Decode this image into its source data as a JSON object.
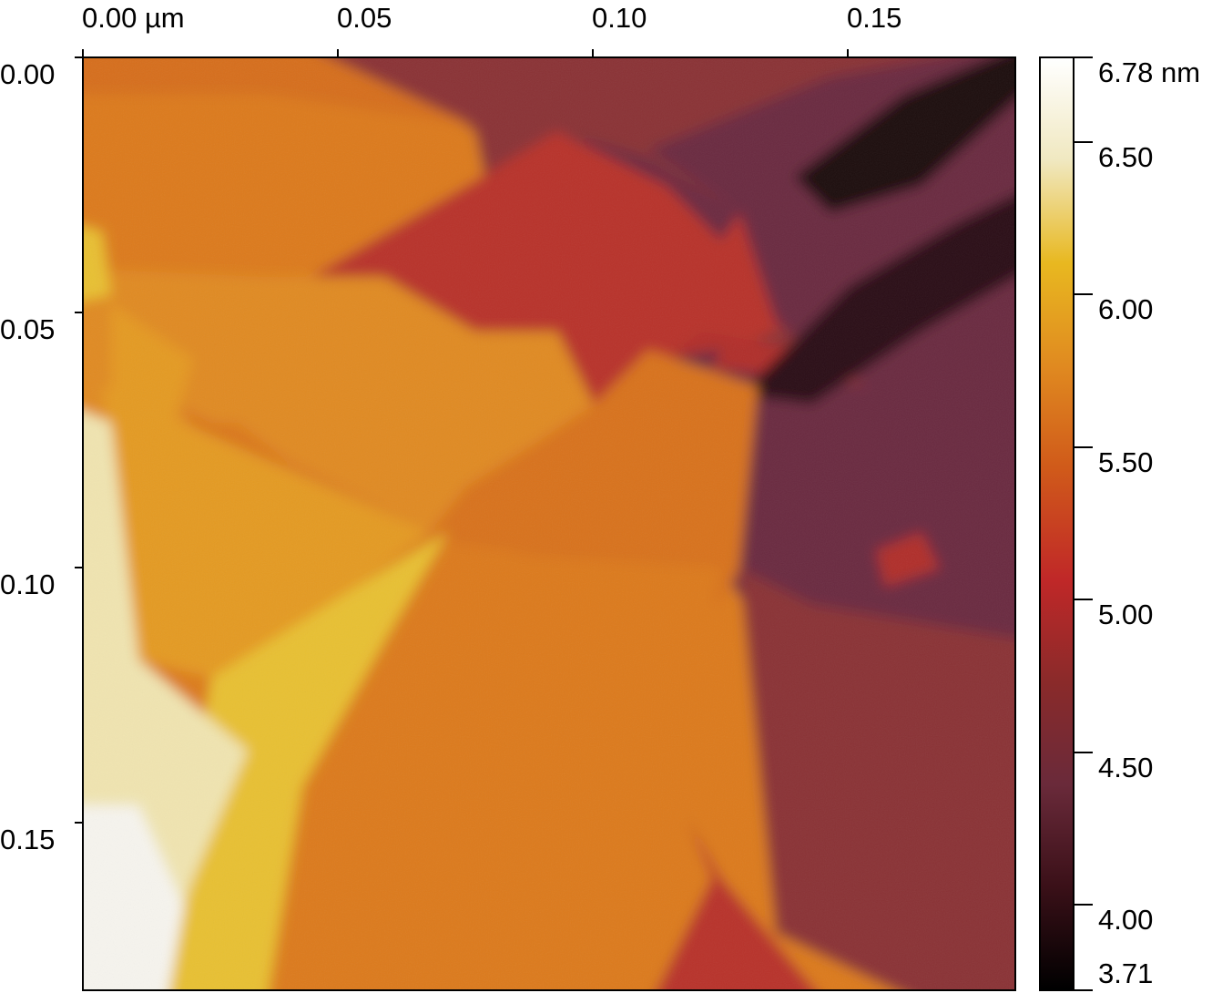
{
  "x_axis": {
    "ticks": [
      "0.00 µm",
      "0.05",
      "0.10",
      "0.15"
    ]
  },
  "y_axis": {
    "ticks": [
      "0.00",
      "0.05",
      "0.10",
      "0.15"
    ]
  },
  "colorbar": {
    "max_label": "6.78 nm",
    "min_label": "3.71",
    "ticks": [
      "6.50",
      "6.00",
      "5.50",
      "5.00",
      "4.50",
      "4.00"
    ],
    "range_nm": [
      3.71,
      6.78
    ],
    "colors": [
      "#000000",
      "#3a1018",
      "#6a2a3a",
      "#8a2a2a",
      "#c02828",
      "#d05a1a",
      "#e08a20",
      "#e8b820",
      "#f0e8c0",
      "#ffffff"
    ]
  },
  "scan": {
    "size_um": 0.183,
    "height_colors": {
      "dark": "#1a0a0e",
      "plum": "#6a2c40",
      "maroon": "#8a3036",
      "red": "#b8302c",
      "orange_red": "#d0581c",
      "orange": "#dc7a1c",
      "light_orange": "#e49a24",
      "yellow": "#e8c030",
      "cream": "#f0e4b0",
      "white": "#f6f4ee"
    }
  }
}
